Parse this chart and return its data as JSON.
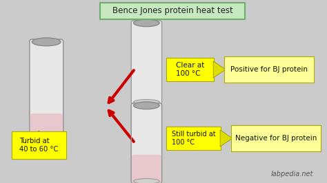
{
  "bg_color": "#cbcbcb",
  "title_text": "Bence Jones protein heat test",
  "title_box_color": "#c8e8c0",
  "title_border_color": "#6ab06a",
  "arrow_color": "#cc0000",
  "label_bg": "#ffff00",
  "result_bg": "#ffff99",
  "watermark": "labpedia.net",
  "labels": {
    "turbid": "Turbid at\n40 to 60 °C",
    "clear": "Clear at\n100 °C",
    "still_turbid": "Still turbid at\n100 °C",
    "positive": "Positive for BJ protein",
    "negative": "Negative for BJ protein"
  }
}
